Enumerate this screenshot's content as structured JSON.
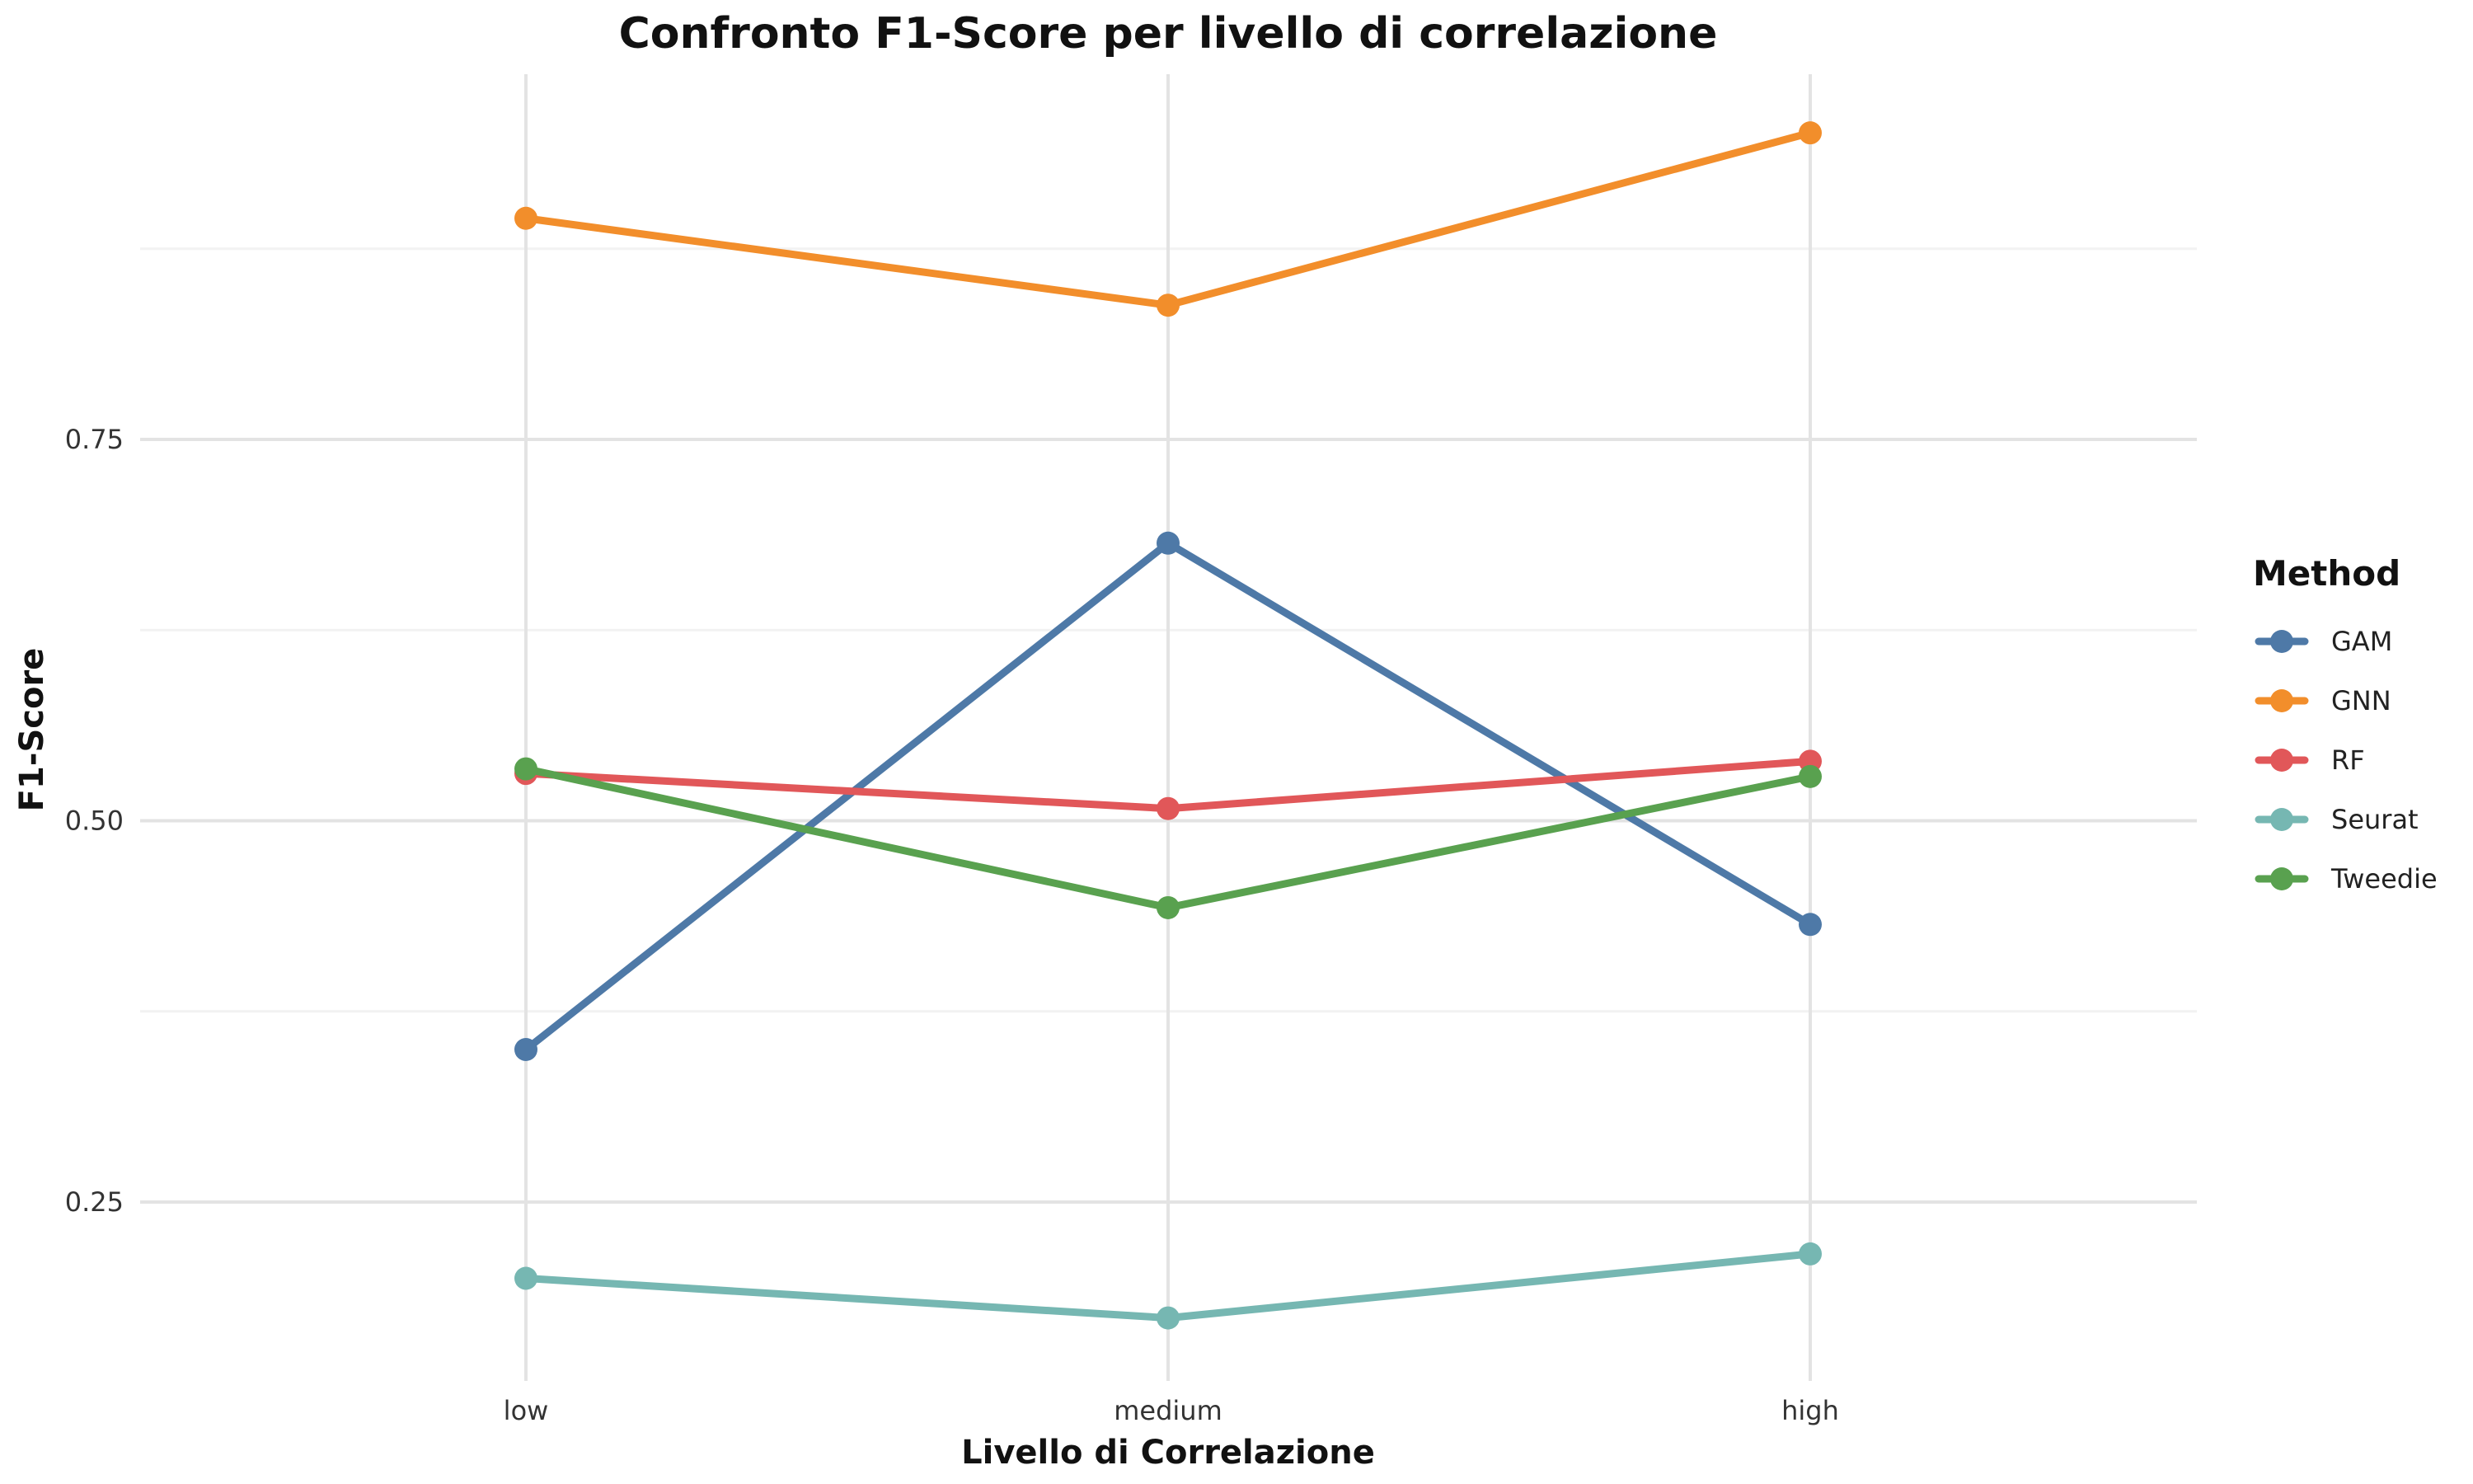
{
  "chart_data": {
    "type": "line",
    "title": "Confronto F1-Score per livello di correlazione",
    "xlabel": "Livello di Correlazione",
    "ylabel": "F1-Score",
    "categories": [
      "low",
      "medium",
      "high"
    ],
    "ylim": [
      0.13,
      1.0
    ],
    "yticks": [
      0.25,
      0.5,
      0.75
    ],
    "ytick_labels": [
      "0.25",
      "0.50",
      "0.75"
    ],
    "grid": true,
    "legend": {
      "title": "Method",
      "position": "right"
    },
    "series": [
      {
        "name": "GAM",
        "color": "#4E79A7",
        "values": [
          0.35,
          0.682,
          0.432
        ]
      },
      {
        "name": "GNN",
        "color": "#F28E2B",
        "values": [
          0.895,
          0.838,
          0.951
        ]
      },
      {
        "name": "RF",
        "color": "#E15759",
        "values": [
          0.531,
          0.508,
          0.539
        ]
      },
      {
        "name": "Seurat",
        "color": "#76B7B2",
        "values": [
          0.2,
          0.174,
          0.216
        ]
      },
      {
        "name": "Tweedie",
        "color": "#59A14F",
        "values": [
          0.534,
          0.443,
          0.529
        ]
      }
    ]
  }
}
